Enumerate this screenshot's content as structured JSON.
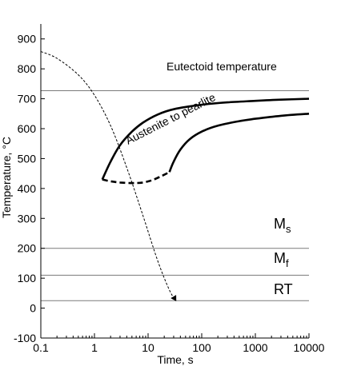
{
  "chart_data": {
    "type": "line",
    "title": "",
    "xlabel": "Time, s",
    "ylabel": "Temperature, °C",
    "xscale": "log",
    "xlim": [
      0.1,
      10000
    ],
    "ylim": [
      -100,
      950
    ],
    "x_ticks": [
      0.1,
      1,
      10,
      100,
      1000,
      10000
    ],
    "x_tick_labels": [
      "0.1",
      "1",
      "10",
      "100",
      "1000",
      "10000"
    ],
    "y_ticks": [
      -100,
      0,
      100,
      200,
      300,
      400,
      500,
      600,
      700,
      800,
      900
    ],
    "y_tick_labels": [
      "-100",
      "0",
      "100",
      "200",
      "300",
      "400",
      "500",
      "600",
      "700",
      "800",
      "900"
    ],
    "grid": false,
    "legend": "none",
    "reference_lines": [
      {
        "label": "Eutectoid temperature",
        "y": 727
      },
      {
        "label": "Ms",
        "y": 200
      },
      {
        "label": "Mf",
        "y": 110
      },
      {
        "label": "RT",
        "y": 25
      }
    ],
    "series": [
      {
        "style": "solid",
        "x": [
          1.4,
          2,
          3,
          5,
          8,
          15,
          30,
          100,
          300,
          1000,
          3000,
          10000
        ],
        "y": [
          430,
          490,
          545,
          590,
          620,
          647,
          665,
          680,
          688,
          693,
          697,
          700
        ]
      },
      {
        "style": "solid",
        "x": [
          25,
          30,
          40,
          60,
          100,
          200,
          500,
          1000,
          3000,
          10000
        ],
        "y": [
          455,
          490,
          530,
          565,
          590,
          610,
          625,
          633,
          643,
          650
        ]
      },
      {
        "style": "bold-dashed",
        "x": [
          1.4,
          2,
          3,
          5,
          8,
          12,
          18,
          25
        ],
        "y": [
          430,
          424,
          420,
          418,
          420,
          428,
          442,
          455
        ]
      },
      {
        "style": "dashed-arrow",
        "x": [
          0.1,
          0.2,
          0.5,
          1,
          2,
          4,
          8,
          15,
          25,
          33
        ],
        "y": [
          858,
          835,
          780,
          712,
          610,
          470,
          310,
          160,
          60,
          25
        ]
      }
    ],
    "annotations": [
      {
        "text": "Austenite to pearlite"
      }
    ]
  },
  "labels": {
    "eutectoid": "Eutectoid temperature",
    "ms_main": "M",
    "ms_sub": "s",
    "mf_main": "M",
    "mf_sub": "f",
    "rt": "RT",
    "curve_note": "Austenite to pearlite",
    "xlabel": "Time, s",
    "ylabel": "Temperature, °C"
  }
}
